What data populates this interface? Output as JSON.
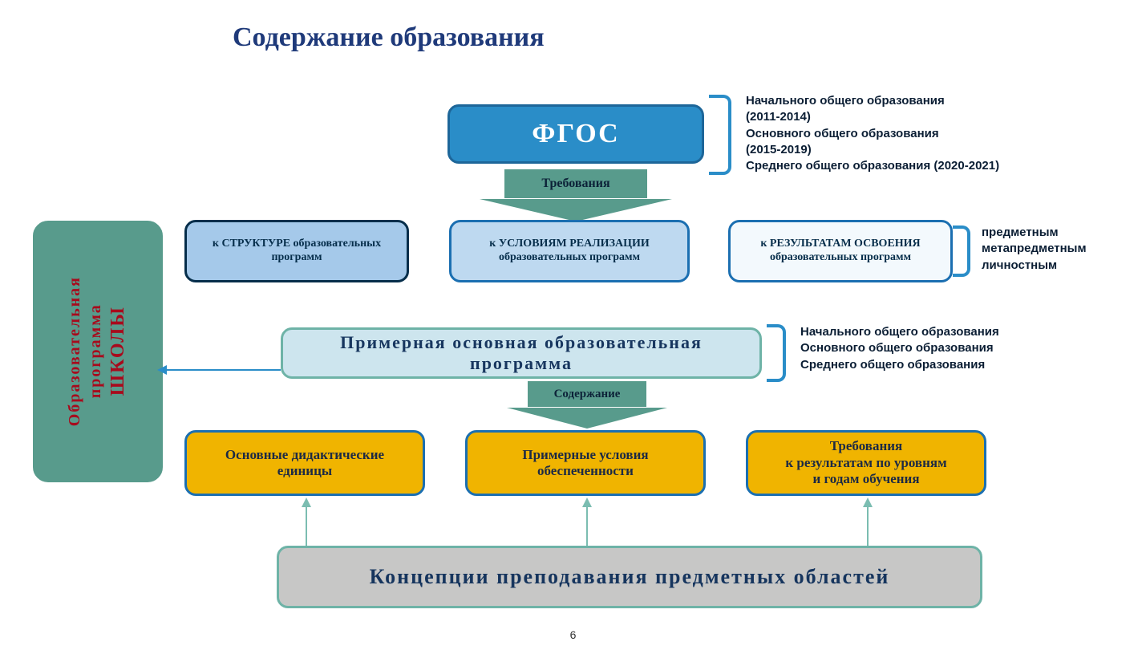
{
  "title": "Содержание образования",
  "left_panel": {
    "line1": "Образовательная",
    "line2": "программа",
    "line3": "ШКОЛЫ"
  },
  "fgos": {
    "label": "ФГОС"
  },
  "side1": {
    "l1": "Начального общего образования",
    "l2": "(2011-2014)",
    "l3": "Основного общего образования",
    "l4": "(2015-2019)",
    "l5": "Среднего общего образования (2020-2021)"
  },
  "arrow1": {
    "label": "Требования"
  },
  "req1": {
    "l1": "к СТРУКТУРЕ образовательных",
    "l2": "программ"
  },
  "req2": {
    "l1": "к УСЛОВИЯМ РЕАЛИЗАЦИИ",
    "l2": "образовательных программ"
  },
  "req3": {
    "l1": "к РЕЗУЛЬТАТАМ ОСВОЕНИЯ",
    "l2": "образовательных программ"
  },
  "side2": {
    "l1": "предметным",
    "l2": "метапредметным",
    "l3": "личностным"
  },
  "prog": {
    "l1": "Примерная основная образовательная",
    "l2": "программа"
  },
  "side3": {
    "l1": "Начального общего образования",
    "l2": "Основного общего образования",
    "l3": "Среднего общего образования"
  },
  "arrow2": {
    "label": "Содержание"
  },
  "yel1": {
    "l1": "Основные дидактические",
    "l2": "единицы"
  },
  "yel2": {
    "l1": "Примерные условия",
    "l2": "обеспеченности"
  },
  "yel3": {
    "l1": "Требования",
    "l2": "к результатам по уровням",
    "l3": "и годам обучения"
  },
  "gray": {
    "label": "Концепции преподавания предметных областей"
  },
  "page": "6",
  "colors": {
    "title": "#1f3a7a",
    "fgos_bg": "#2a8dc8",
    "teal": "#589b8c",
    "yellow": "#f0b400",
    "gray": "#c7c7c6",
    "blue_border": "#1b6fb1"
  }
}
